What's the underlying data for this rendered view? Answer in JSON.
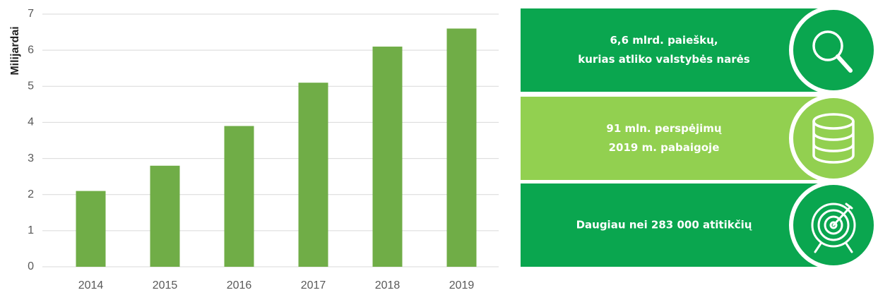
{
  "chart_data": {
    "type": "bar",
    "ylabel": "Milijardai",
    "categories": [
      "2014",
      "2015",
      "2016",
      "2017",
      "2018",
      "2019"
    ],
    "values": [
      2.1,
      2.8,
      3.9,
      5.1,
      6.1,
      6.6
    ],
    "color": "#70ad47",
    "ylim": [
      0,
      7
    ],
    "yticks": [
      0,
      1,
      2,
      3,
      4,
      5,
      6,
      7
    ],
    "grid": true
  },
  "panels": [
    {
      "lines": [
        "6,6 mlrd. paieškų,",
        "kurias atliko valstybės narės"
      ],
      "color": "#0aa64f"
    },
    {
      "lines": [
        "91 mln. perspėjimų",
        "2019 m. pabaigoje"
      ],
      "color": "#92d050"
    },
    {
      "lines": [
        "Daugiau nei 283 000 atitikčių"
      ],
      "color": "#0aa64f"
    }
  ]
}
